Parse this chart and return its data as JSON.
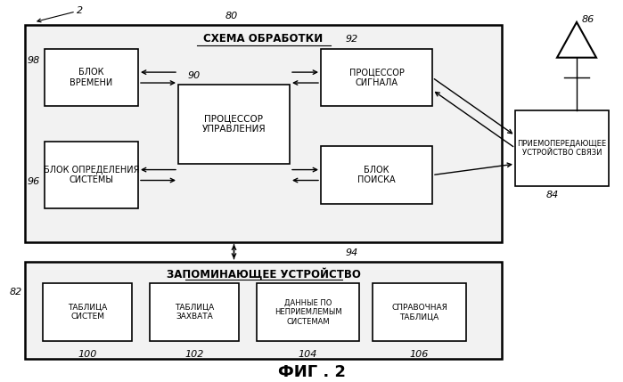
{
  "title": "ФИГ . 2",
  "bg_color": "#ffffff",
  "box_color": "#ffffff",
  "box_edge": "#000000",
  "label_2": "2",
  "label_80": "80",
  "label_82": "82",
  "label_84": "84",
  "label_86": "86",
  "label_90": "90",
  "label_92": "92",
  "label_94": "94",
  "label_96": "96",
  "label_98": "98",
  "label_100": "100",
  "label_102": "102",
  "label_104": "104",
  "label_106": "106",
  "processing_title": "СХЕМА ОБРАБОТКИ",
  "memory_title": "ЗАПОМИНАЮЩЕЕ УСТРОЙСТВО",
  "block_vremeni": "БЛОК\nВРЕМЕНИ",
  "block_opredelenia": "БЛОК ОПРЕДЕЛЕНИЯ\nСИСТЕМЫ",
  "processor_upravlenia": "ПРОЦЕССОР\nУПРАВЛЕНИЯ",
  "processor_signala": "ПРОЦЕССОР\nСИГНАЛА",
  "blok_poiska": "БЛОК\nПОИСКА",
  "priemo": "ПРИЕМОПЕРЕДАЮЩЕЕ\nУСТРОЙСТВО СВЯЗИ",
  "tablica_sistem": "ТАБЛИЦА\nСИСТЕМ",
  "tablica_zahvata": "ТАБЛИЦА\nЗАХВАТА",
  "dannye": "ДАННЫЕ ПО\nНЕПРИЕМЛЕМЫМ\nСИСТЕМАМ",
  "spravochnaya": "СПРАВОЧНАЯ\nТАБЛИЦА"
}
